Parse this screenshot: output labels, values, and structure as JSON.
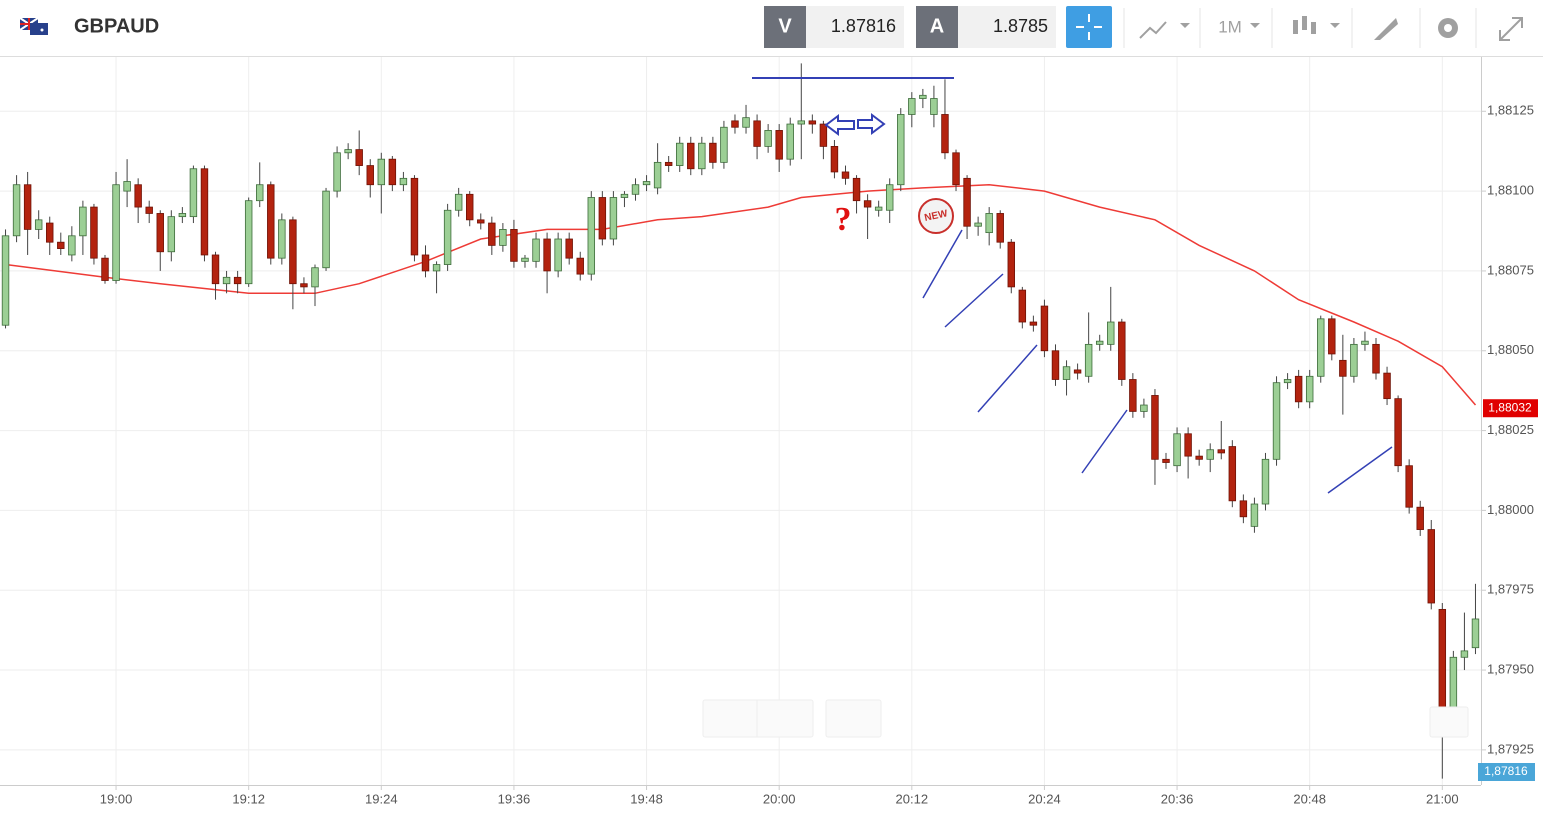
{
  "header": {
    "symbol": "GBPAUD",
    "bid_label": "V",
    "bid": 1.87816,
    "ask_label": "A",
    "ask": 1.8785,
    "timeframe": "1M"
  },
  "chart_data": {
    "type": "candlestick",
    "up_color": "#9ccf95",
    "down_color": "#b3230f",
    "grid": true,
    "categories": [
      "18:50",
      "18:51",
      "18:52",
      "18:53",
      "18:54",
      "18:55",
      "18:56",
      "18:57",
      "18:58",
      "18:59",
      "19:00",
      "19:01",
      "19:02",
      "19:03",
      "19:04",
      "19:05",
      "19:06",
      "19:07",
      "19:08",
      "19:09",
      "19:10",
      "19:11",
      "19:12",
      "19:13",
      "19:14",
      "19:15",
      "19:16",
      "19:17",
      "19:18",
      "19:19",
      "19:20",
      "19:21",
      "19:22",
      "19:23",
      "19:24",
      "19:25",
      "19:26",
      "19:27",
      "19:28",
      "19:29",
      "19:30",
      "19:31",
      "19:32",
      "19:33",
      "19:34",
      "19:35",
      "19:36",
      "19:37",
      "19:38",
      "19:39",
      "19:40",
      "19:41",
      "19:42",
      "19:43",
      "19:44",
      "19:45",
      "19:46",
      "19:47",
      "19:48",
      "19:49",
      "19:50",
      "19:51",
      "19:52",
      "19:53",
      "19:54",
      "19:55",
      "19:56",
      "19:57",
      "19:58",
      "19:59",
      "20:00",
      "20:01",
      "20:02",
      "20:03",
      "20:04",
      "20:05",
      "20:06",
      "20:07",
      "20:08",
      "20:09",
      "20:10",
      "20:11",
      "20:12",
      "20:13",
      "20:14",
      "20:15",
      "20:16",
      "20:17",
      "20:18",
      "20:19",
      "20:20",
      "20:21",
      "20:22",
      "20:23",
      "20:24",
      "20:25",
      "20:26",
      "20:27",
      "20:28",
      "20:29",
      "20:30",
      "20:31",
      "20:32",
      "20:33",
      "20:34",
      "20:35",
      "20:36",
      "20:37",
      "20:38",
      "20:39",
      "20:40",
      "20:41",
      "20:42",
      "20:43",
      "20:44",
      "20:45",
      "20:46",
      "20:47",
      "20:48",
      "20:49",
      "20:50",
      "20:51",
      "20:52",
      "20:53",
      "20:54",
      "20:55",
      "20:56",
      "20:57",
      "20:58",
      "20:59",
      "21:00",
      "21:01",
      "21:02",
      "21:03"
    ],
    "candles": [
      [
        1.88058,
        1.88088,
        1.88057,
        1.88086
      ],
      [
        1.88086,
        1.88105,
        1.88084,
        1.88102
      ],
      [
        1.88102,
        1.88106,
        1.8808,
        1.88088
      ],
      [
        1.88088,
        1.88094,
        1.88085,
        1.88091
      ],
      [
        1.8809,
        1.88092,
        1.8808,
        1.88084
      ],
      [
        1.88084,
        1.88087,
        1.8808,
        1.88082
      ],
      [
        1.8808,
        1.88089,
        1.88078,
        1.88086
      ],
      [
        1.88086,
        1.88097,
        1.8808,
        1.88095
      ],
      [
        1.88095,
        1.88096,
        1.88077,
        1.88079
      ],
      [
        1.88079,
        1.8808,
        1.88071,
        1.88072
      ],
      [
        1.88072,
        1.88106,
        1.88071,
        1.88102
      ],
      [
        1.881,
        1.8811,
        1.88095,
        1.88103
      ],
      [
        1.88102,
        1.88104,
        1.8809,
        1.88095
      ],
      [
        1.88095,
        1.88097,
        1.8809,
        1.88093
      ],
      [
        1.88093,
        1.88094,
        1.88075,
        1.88081
      ],
      [
        1.88081,
        1.88094,
        1.88078,
        1.88092
      ],
      [
        1.88092,
        1.88095,
        1.8809,
        1.88093
      ],
      [
        1.88092,
        1.88108,
        1.8809,
        1.88107
      ],
      [
        1.88107,
        1.88108,
        1.88078,
        1.8808
      ],
      [
        1.8808,
        1.88081,
        1.88066,
        1.88071
      ],
      [
        1.88071,
        1.88075,
        1.88068,
        1.88073
      ],
      [
        1.88073,
        1.88075,
        1.88068,
        1.88071
      ],
      [
        1.88071,
        1.88098,
        1.8807,
        1.88097
      ],
      [
        1.88097,
        1.88109,
        1.88095,
        1.88102
      ],
      [
        1.88102,
        1.88103,
        1.88077,
        1.88079
      ],
      [
        1.88079,
        1.88093,
        1.88077,
        1.88091
      ],
      [
        1.88091,
        1.88092,
        1.88063,
        1.88071
      ],
      [
        1.88071,
        1.88073,
        1.88068,
        1.8807
      ],
      [
        1.8807,
        1.88077,
        1.88064,
        1.88076
      ],
      [
        1.88076,
        1.88101,
        1.88075,
        1.881
      ],
      [
        1.881,
        1.88114,
        1.88098,
        1.88112
      ],
      [
        1.88112,
        1.88115,
        1.8811,
        1.88113
      ],
      [
        1.88113,
        1.88119,
        1.88105,
        1.88108
      ],
      [
        1.88108,
        1.8811,
        1.88098,
        1.88102
      ],
      [
        1.88102,
        1.88112,
        1.88093,
        1.8811
      ],
      [
        1.8811,
        1.88111,
        1.881,
        1.88102
      ],
      [
        1.88102,
        1.88106,
        1.881,
        1.88104
      ],
      [
        1.88104,
        1.88105,
        1.88078,
        1.8808
      ],
      [
        1.8808,
        1.88083,
        1.88073,
        1.88075
      ],
      [
        1.88075,
        1.88078,
        1.88068,
        1.88077
      ],
      [
        1.88077,
        1.88096,
        1.88075,
        1.88094
      ],
      [
        1.88094,
        1.88101,
        1.88092,
        1.88099
      ],
      [
        1.88099,
        1.881,
        1.88089,
        1.88091
      ],
      [
        1.88091,
        1.88093,
        1.88088,
        1.8809
      ],
      [
        1.8809,
        1.88092,
        1.8808,
        1.88083
      ],
      [
        1.88083,
        1.8809,
        1.88081,
        1.88088
      ],
      [
        1.88088,
        1.88091,
        1.88076,
        1.88078
      ],
      [
        1.88078,
        1.8808,
        1.88076,
        1.88079
      ],
      [
        1.88078,
        1.88087,
        1.88076,
        1.88085
      ],
      [
        1.88085,
        1.88087,
        1.88068,
        1.88075
      ],
      [
        1.88075,
        1.88087,
        1.88073,
        1.88085
      ],
      [
        1.88085,
        1.88087,
        1.88077,
        1.88079
      ],
      [
        1.88079,
        1.88081,
        1.88072,
        1.88074
      ],
      [
        1.88074,
        1.881,
        1.88072,
        1.88098
      ],
      [
        1.88098,
        1.881,
        1.88083,
        1.88085
      ],
      [
        1.88085,
        1.881,
        1.88083,
        1.88098
      ],
      [
        1.88098,
        1.881,
        1.88095,
        1.88099
      ],
      [
        1.88099,
        1.88104,
        1.88097,
        1.88102
      ],
      [
        1.88102,
        1.88105,
        1.881,
        1.88103
      ],
      [
        1.88101,
        1.88115,
        1.88099,
        1.88109
      ],
      [
        1.88109,
        1.88111,
        1.88106,
        1.88108
      ],
      [
        1.88108,
        1.88117,
        1.88106,
        1.88115
      ],
      [
        1.88115,
        1.88117,
        1.88105,
        1.88107
      ],
      [
        1.88107,
        1.88117,
        1.88105,
        1.88115
      ],
      [
        1.88115,
        1.88117,
        1.88107,
        1.88109
      ],
      [
        1.88109,
        1.88122,
        1.88107,
        1.8812
      ],
      [
        1.88122,
        1.88124,
        1.88118,
        1.8812
      ],
      [
        1.8812,
        1.88127,
        1.88118,
        1.88123
      ],
      [
        1.88122,
        1.88124,
        1.8811,
        1.88114
      ],
      [
        1.88114,
        1.88121,
        1.88112,
        1.88119
      ],
      [
        1.88119,
        1.88121,
        1.88106,
        1.8811
      ],
      [
        1.8811,
        1.88123,
        1.88108,
        1.88121
      ],
      [
        1.88121,
        1.8814,
        1.8811,
        1.88122
      ],
      [
        1.88122,
        1.88124,
        1.88118,
        1.88121
      ],
      [
        1.88121,
        1.88122,
        1.8811,
        1.88114
      ],
      [
        1.88114,
        1.88116,
        1.88104,
        1.88106
      ],
      [
        1.88106,
        1.88108,
        1.88102,
        1.88104
      ],
      [
        1.88104,
        1.88105,
        1.88093,
        1.88097
      ],
      [
        1.88097,
        1.88099,
        1.88085,
        1.88095
      ],
      [
        1.88094,
        1.88097,
        1.88092,
        1.88095
      ],
      [
        1.88094,
        1.88104,
        1.8809,
        1.88102
      ],
      [
        1.88102,
        1.88126,
        1.881,
        1.88124
      ],
      [
        1.88124,
        1.88131,
        1.8812,
        1.88129
      ],
      [
        1.88129,
        1.88132,
        1.88126,
        1.8813
      ],
      [
        1.88124,
        1.88133,
        1.8812,
        1.88129
      ],
      [
        1.88124,
        1.88135,
        1.8811,
        1.88112
      ],
      [
        1.88112,
        1.88113,
        1.881,
        1.88102
      ],
      [
        1.88104,
        1.88105,
        1.88085,
        1.88089
      ],
      [
        1.88089,
        1.88092,
        1.88086,
        1.8809
      ],
      [
        1.88087,
        1.88095,
        1.88083,
        1.88093
      ],
      [
        1.88093,
        1.88094,
        1.88082,
        1.88084
      ],
      [
        1.88084,
        1.88085,
        1.88068,
        1.8807
      ],
      [
        1.88069,
        1.8807,
        1.88057,
        1.88059
      ],
      [
        1.88059,
        1.88061,
        1.88056,
        1.88058
      ],
      [
        1.88064,
        1.88066,
        1.88048,
        1.8805
      ],
      [
        1.8805,
        1.88052,
        1.88039,
        1.88041
      ],
      [
        1.88041,
        1.88047,
        1.88036,
        1.88045
      ],
      [
        1.88044,
        1.88046,
        1.88041,
        1.88043
      ],
      [
        1.88042,
        1.88062,
        1.8804,
        1.88052
      ],
      [
        1.88052,
        1.88055,
        1.8805,
        1.88053
      ],
      [
        1.88052,
        1.8807,
        1.8805,
        1.88059
      ],
      [
        1.88059,
        1.8806,
        1.88039,
        1.88041
      ],
      [
        1.88041,
        1.88043,
        1.88029,
        1.88031
      ],
      [
        1.88031,
        1.88035,
        1.88029,
        1.88033
      ],
      [
        1.88036,
        1.88038,
        1.88008,
        1.88016
      ],
      [
        1.88016,
        1.88018,
        1.88013,
        1.88015
      ],
      [
        1.88014,
        1.88026,
        1.88012,
        1.88024
      ],
      [
        1.88024,
        1.88026,
        1.8801,
        1.88017
      ],
      [
        1.88017,
        1.88019,
        1.88014,
        1.88016
      ],
      [
        1.88016,
        1.88021,
        1.88012,
        1.88019
      ],
      [
        1.88019,
        1.88028,
        1.88016,
        1.88018
      ],
      [
        1.8802,
        1.88022,
        1.88001,
        1.88003
      ],
      [
        1.88003,
        1.88005,
        1.87996,
        1.87998
      ],
      [
        1.87995,
        1.88004,
        1.87993,
        1.88002
      ],
      [
        1.88002,
        1.88018,
        1.88,
        1.88016
      ],
      [
        1.88016,
        1.88042,
        1.88014,
        1.8804
      ],
      [
        1.8804,
        1.88043,
        1.88038,
        1.88041
      ],
      [
        1.88042,
        1.88044,
        1.88032,
        1.88034
      ],
      [
        1.88034,
        1.88044,
        1.88032,
        1.88042
      ],
      [
        1.88042,
        1.88061,
        1.8804,
        1.8806
      ],
      [
        1.8806,
        1.88061,
        1.88047,
        1.88049
      ],
      [
        1.88047,
        1.88055,
        1.8803,
        1.88042
      ],
      [
        1.88042,
        1.88054,
        1.8804,
        1.88052
      ],
      [
        1.88052,
        1.88056,
        1.8805,
        1.88053
      ],
      [
        1.88052,
        1.88054,
        1.88041,
        1.88043
      ],
      [
        1.88043,
        1.88045,
        1.88033,
        1.88035
      ],
      [
        1.88035,
        1.88036,
        1.88012,
        1.88014
      ],
      [
        1.88014,
        1.88016,
        1.87999,
        1.88001
      ],
      [
        1.88001,
        1.88003,
        1.87992,
        1.87994
      ],
      [
        1.87994,
        1.87997,
        1.87969,
        1.87971
      ],
      [
        1.87969,
        1.87971,
        1.87916,
        1.87938
      ],
      [
        1.87938,
        1.87956,
        1.87936,
        1.87954
      ],
      [
        1.87954,
        1.87968,
        1.8795,
        1.87956
      ],
      [
        1.87957,
        1.87977,
        1.87955,
        1.87966
      ]
    ],
    "ma": {
      "color": "#ee3b36",
      "x": [
        "18:50",
        "18:59",
        "19:04",
        "19:12",
        "19:18",
        "19:22",
        "19:28",
        "19:33",
        "19:39",
        "19:44",
        "19:49",
        "19:53",
        "19:59",
        "20:02",
        "20:08",
        "20:13",
        "20:19",
        "20:24",
        "20:29",
        "20:34",
        "20:38",
        "20:43",
        "20:47",
        "20:52",
        "20:56",
        "21:00",
        "21:03"
      ],
      "values": [
        1.88077,
        1.88073,
        1.88071,
        1.88068,
        1.88068,
        1.88071,
        1.88078,
        1.88085,
        1.88088,
        1.88088,
        1.88091,
        1.88092,
        1.88095,
        1.88098,
        1.881,
        1.88101,
        1.88102,
        1.881,
        1.88095,
        1.88091,
        1.88083,
        1.88075,
        1.88066,
        1.88059,
        1.88053,
        1.88045,
        1.88033
      ]
    },
    "ylim": [
      1.87914,
      1.88142
    ],
    "yticks": [
      {
        "value": 1.87925,
        "label": "1,87925"
      },
      {
        "value": 1.8795,
        "label": "1,87950"
      },
      {
        "value": 1.87975,
        "label": "1,87975"
      },
      {
        "value": 1.88,
        "label": "1,88000"
      },
      {
        "value": 1.88025,
        "label": "1,88025"
      },
      {
        "value": 1.8805,
        "label": "1,88050"
      },
      {
        "value": 1.88075,
        "label": "1,88075"
      },
      {
        "value": 1.881,
        "label": "1,88100"
      },
      {
        "value": 1.88125,
        "label": "1,88125"
      }
    ],
    "xticks": [
      "19:00",
      "19:12",
      "19:24",
      "19:36",
      "19:48",
      "20:00",
      "20:12",
      "20:24",
      "20:36",
      "20:48",
      "21:00"
    ],
    "last_price": {
      "value": 1.88032,
      "label": "1,88032",
      "color": "#e00000"
    },
    "bid_price": {
      "value": 1.87816,
      "label": "1,87816",
      "color": "#4aa6d8"
    },
    "annotations": [
      "?",
      "NEW"
    ]
  }
}
